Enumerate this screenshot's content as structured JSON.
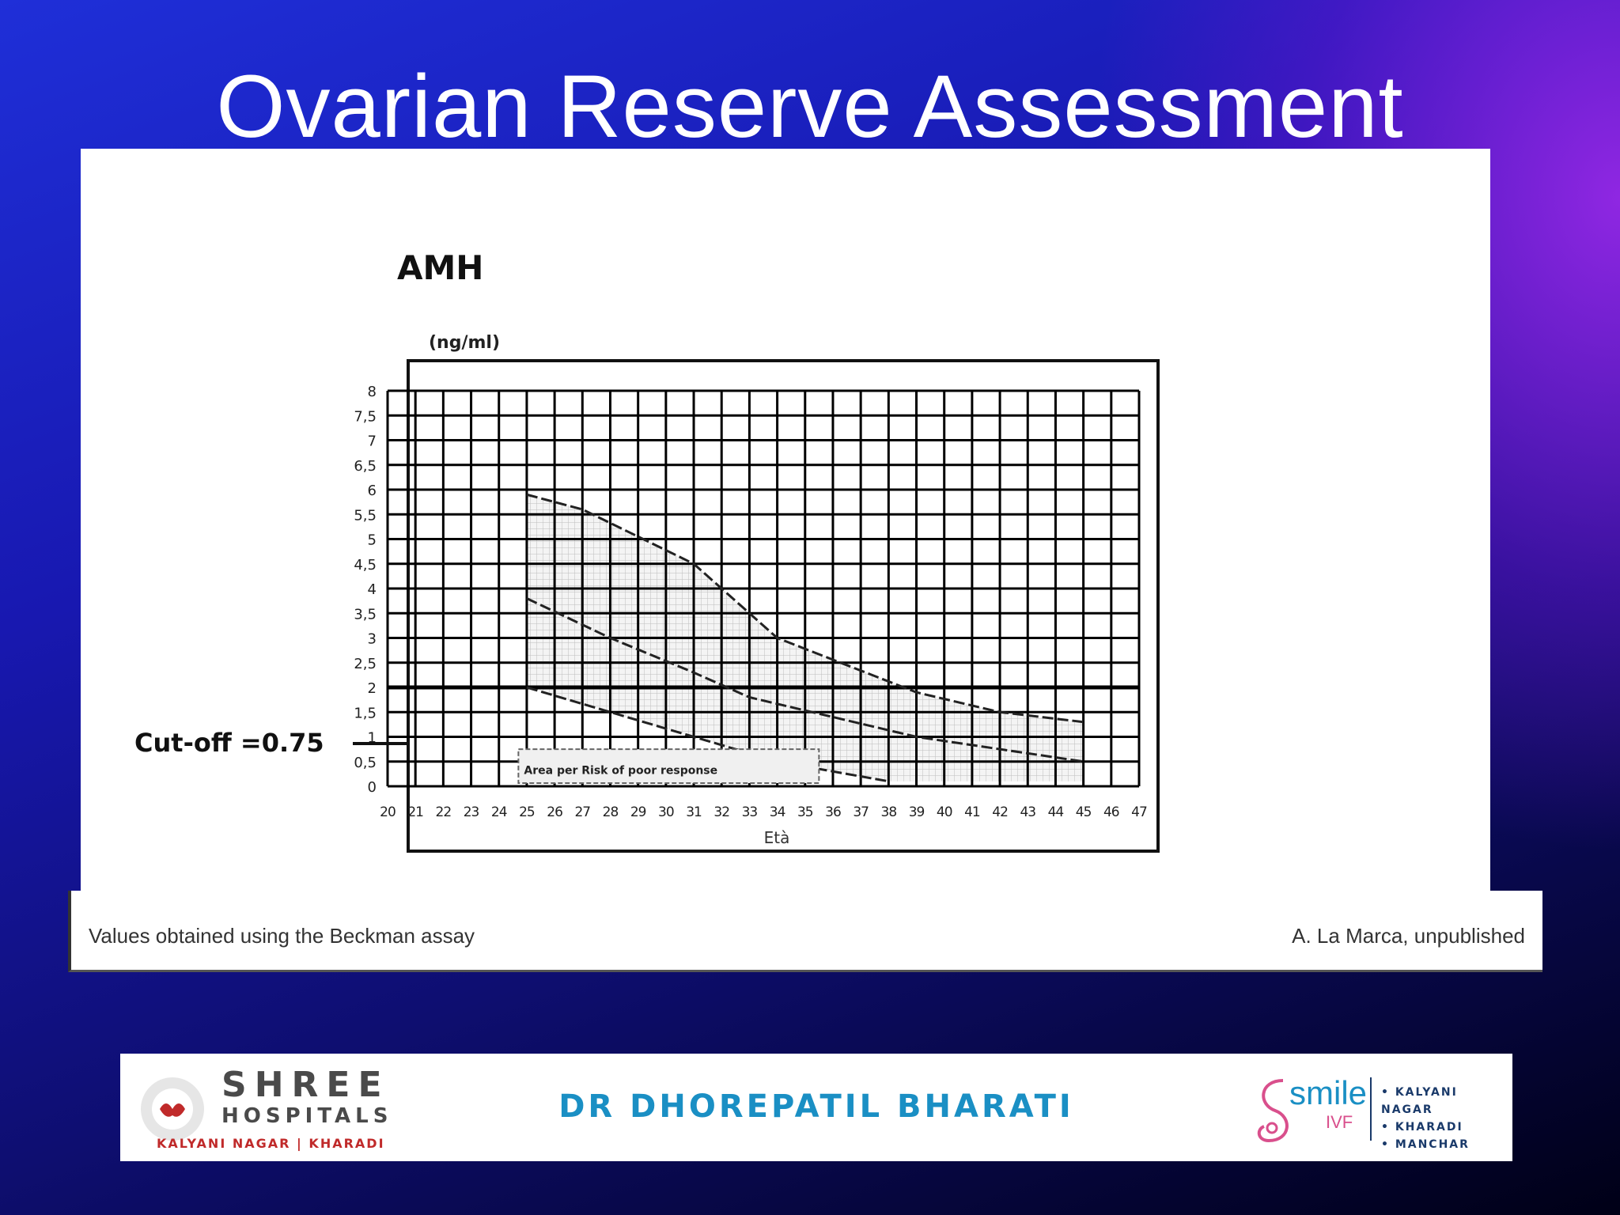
{
  "slide": {
    "title": "Ovarian Reserve Assessment",
    "caption_left": "Values obtained using the Beckman assay",
    "caption_right": "A. La Marca, unpublished",
    "cutoff_label": "Cut-off =0.75"
  },
  "footer": {
    "hospital_name": "SHREE",
    "hospital_sub": "HOSPITALS",
    "hospital_locations": "KALYANI NAGAR  |  KHARADI",
    "doctor": "DR  DHOREPATIL  BHARATI",
    "ivf_brand": "smile",
    "ivf_sub": "IVF",
    "ivf_locations": [
      "KALYANI NAGAR",
      "KHARADI",
      "MANCHAR"
    ]
  },
  "colors": {
    "background": "#1818b0",
    "title": "#ffffff",
    "doctor": "#1a8fc4",
    "hospital_accent": "#c02a2a"
  },
  "chart_data": {
    "type": "area",
    "title": "AMH",
    "ylabel": "(ng/ml)",
    "xlabel": "Età",
    "x_ticks": [
      20,
      21,
      22,
      23,
      24,
      25,
      26,
      27,
      28,
      29,
      30,
      31,
      32,
      33,
      34,
      35,
      36,
      37,
      38,
      39,
      40,
      41,
      42,
      43,
      44,
      45,
      46,
      47
    ],
    "y_ticks": [
      "0",
      "0,5",
      "1",
      "1,5",
      "2",
      "2,5",
      "3",
      "3,5",
      "4",
      "4,5",
      "5",
      "5,5",
      "6",
      "6,5",
      "7",
      "7,5",
      "8"
    ],
    "xlim": [
      20,
      47
    ],
    "ylim": [
      0,
      8
    ],
    "grid": true,
    "series": [
      {
        "values": [
          [
            25,
            5.9
          ],
          [
            27,
            5.6
          ],
          [
            31,
            4.5
          ],
          [
            34,
            3.0
          ],
          [
            39,
            1.9
          ],
          [
            42,
            1.5
          ],
          [
            45,
            1.3
          ]
        ]
      },
      {
        "values": [
          [
            25,
            3.8
          ],
          [
            28,
            3.0
          ],
          [
            31,
            2.3
          ],
          [
            33,
            1.8
          ],
          [
            39,
            1.0
          ],
          [
            45,
            0.5
          ]
        ]
      },
      {
        "values": [
          [
            25,
            2.0
          ],
          [
            28,
            1.5
          ],
          [
            31,
            1.0
          ],
          [
            34,
            0.5
          ],
          [
            38,
            0.1
          ]
        ]
      }
    ],
    "shaded_region": {
      "x": [
        25,
        45
      ]
    },
    "reference_line": {
      "y": 2.0
    },
    "inner_box_label": "Area per Risk of poor response"
  }
}
